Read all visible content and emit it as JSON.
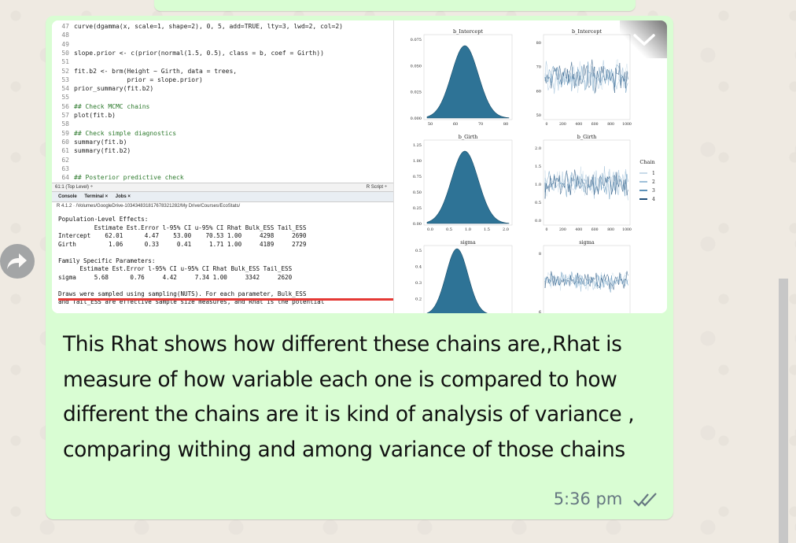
{
  "message": {
    "text": "This Rhat shows how different these chains are,,Rhat is measure of how variable each one is compared to how different the chains are it is kind of  analysis of variance , comparing withing and among variance of those chains",
    "time": "5:36 pm",
    "status_icon": "double-check-icon"
  },
  "screenshot": {
    "code": [
      {
        "n": "47",
        "t": "curve(dgamma(x, scale=1, shape=2), 0, 5, add=TRUE, lty=3, lwd=2, col=2)"
      },
      {
        "n": "48",
        "t": ""
      },
      {
        "n": "49",
        "t": ""
      },
      {
        "n": "50",
        "t": "slope.prior <- c(prior(normal(1.5, 0.5), class = b, coef = Girth))"
      },
      {
        "n": "51",
        "t": ""
      },
      {
        "n": "52",
        "t": "fit.b2 <- brm(Height ~ Girth, data = trees,"
      },
      {
        "n": "53",
        "t": "              prior = slope.prior)"
      },
      {
        "n": "54",
        "t": "prior_summary(fit.b2)"
      },
      {
        "n": "55",
        "t": ""
      },
      {
        "n": "56",
        "t": "## Check MCMC chains"
      },
      {
        "n": "57",
        "t": "plot(fit.b)"
      },
      {
        "n": "58",
        "t": ""
      },
      {
        "n": "59",
        "t": "## Check simple diagnostics"
      },
      {
        "n": "60",
        "t": "summary(fit.b)"
      },
      {
        "n": "61",
        "t": "summary(fit.b2)"
      },
      {
        "n": "62",
        "t": ""
      },
      {
        "n": "63",
        "t": ""
      },
      {
        "n": "64",
        "t": "## Posterior predictive check"
      }
    ],
    "editor_status_left": "61:1    (Top Level) ÷",
    "editor_status_right": "R Script ÷",
    "console_tabs": [
      "Console",
      "Terminal ×",
      "Jobs ×"
    ],
    "console_path": "R 4.1.2 · /Volumes/GoogleDrive-103434831817678321282/My Drive/Courses/EcoStats/",
    "console": [
      "Population-Level Effects:",
      "          Estimate Est.Error l-95% CI u-95% CI Rhat Bulk_ESS Tail_ESS",
      "Intercept    62.01      4.47    53.00    70.53 1.00     4298     2690",
      "Girth         1.06      0.33     0.41     1.71 1.00     4189     2729",
      "",
      "Family Specific Parameters:",
      "      Estimate Est.Error l-95% CI u-95% CI Rhat Bulk_ESS Tail_ESS",
      "sigma     5.68      0.76     4.42     7.34 1.00     3342     2620",
      "",
      "Draws were sampled using sampling(NUTS). For each parameter, Bulk_ESS",
      "and Tail_ESS are effective sample size measures, and Rhat is the potential"
    ],
    "plots": {
      "panels": [
        {
          "title": "b_Intercept",
          "density_ticks_x": [
            "50",
            "60",
            "70",
            "80"
          ],
          "density_ticks_y": [
            "0.075",
            "0.050",
            "0.025",
            "0.000"
          ],
          "trace_ticks_y": [
            "80",
            "70",
            "60",
            "50"
          ]
        },
        {
          "title": "b_Girth",
          "density_ticks_x": [
            "0.0",
            "0.5",
            "1.0",
            "1.5",
            "2.0"
          ],
          "density_ticks_y": [
            "1.25",
            "1.00",
            "0.75",
            "0.50",
            "0.25",
            "0.00"
          ],
          "trace_ticks_y": [
            "2.0",
            "1.5",
            "1.0",
            "0.5",
            "0.0"
          ]
        },
        {
          "title": "sigma",
          "density_ticks_y": [
            "0.5",
            "0.4",
            "0.3",
            "0.2",
            "0.1"
          ],
          "trace_ticks_y": [
            "8",
            "6"
          ]
        }
      ],
      "trace_ticks_x": [
        "0",
        "200",
        "400",
        "600",
        "800",
        "1000"
      ],
      "legend_title": "Chain",
      "legend_items": [
        "1",
        "2",
        "3",
        "4"
      ],
      "colors": {
        "density": "#2e7396",
        "trace": [
          "#c9dbe9",
          "#9fc0d9",
          "#5f93ba",
          "#1f4e79"
        ]
      }
    }
  },
  "icons": {
    "forward": "forward-icon",
    "expand": "chevron-down-icon"
  }
}
